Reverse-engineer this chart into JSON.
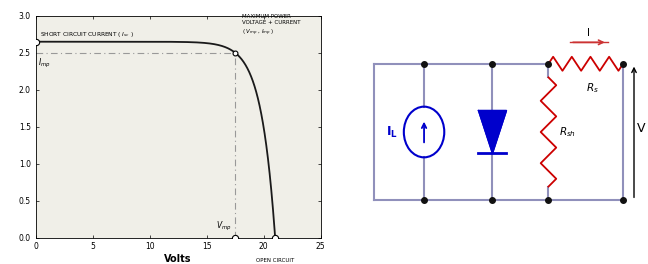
{
  "iv_curve": {
    "Isc": 2.65,
    "Imp": 2.5,
    "Vmp": 17.5,
    "Voc": 21.0,
    "xlim": [
      0,
      25
    ],
    "ylim": [
      0,
      3.0
    ],
    "xticks": [
      0,
      5,
      10,
      15,
      20,
      25
    ],
    "yticks": [
      0.0,
      0.5,
      1.0,
      1.5,
      2.0,
      2.5,
      3.0
    ],
    "xlabel": "Volts",
    "dash_color": "#999999",
    "curve_color": "#1a1a1a",
    "bg_color": "#f0efe8"
  },
  "circuit": {
    "wire_color": "#9090bb",
    "current_source_color": "#0000cc",
    "diode_color": "#0000cc",
    "resistor_color": "#cc0000",
    "dot_color": "#111111"
  }
}
